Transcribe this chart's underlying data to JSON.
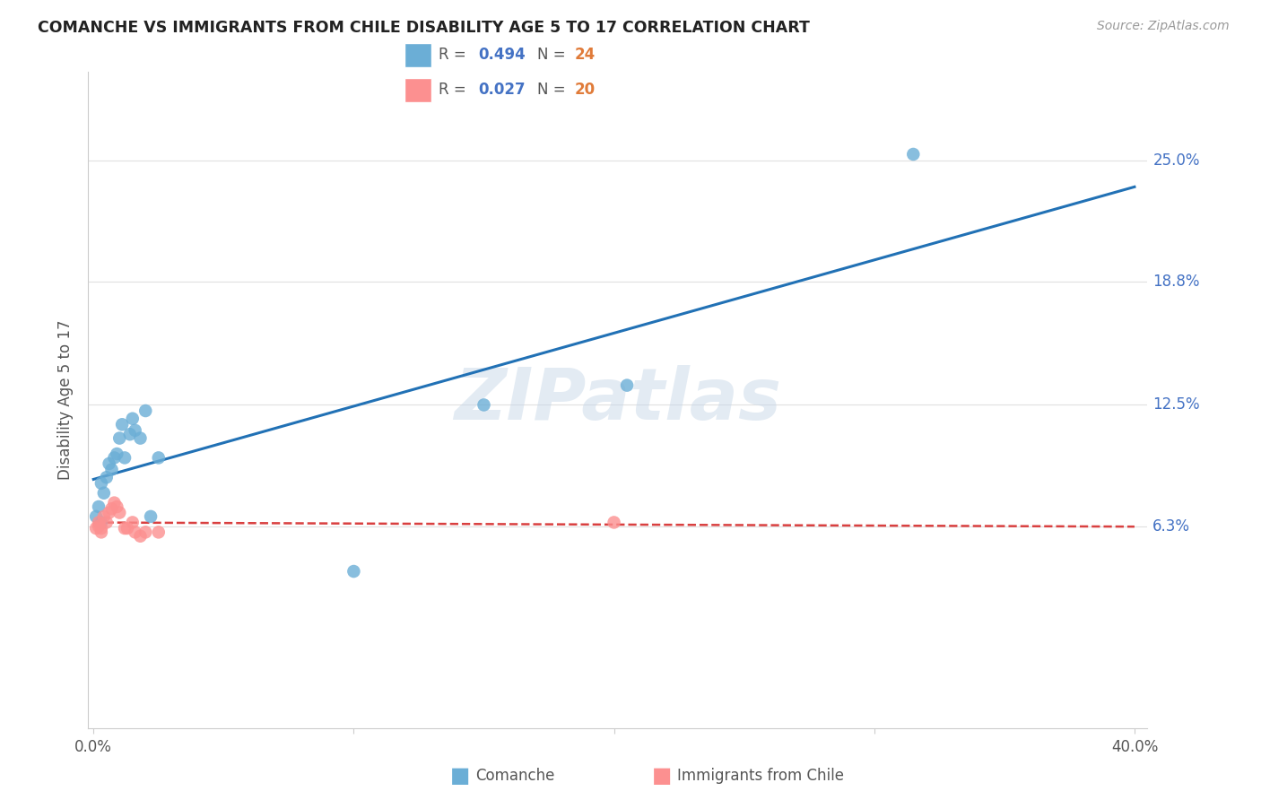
{
  "title": "COMANCHE VS IMMIGRANTS FROM CHILE DISABILITY AGE 5 TO 17 CORRELATION CHART",
  "source": "Source: ZipAtlas.com",
  "ylabel": "Disability Age 5 to 17",
  "ytick_labels": [
    "6.3%",
    "12.5%",
    "18.8%",
    "25.0%"
  ],
  "ytick_values": [
    0.063,
    0.125,
    0.188,
    0.25
  ],
  "xlim": [
    -0.002,
    0.405
  ],
  "ylim": [
    -0.04,
    0.295
  ],
  "watermark": "ZIPatlas",
  "R1": "0.494",
  "N1": "24",
  "R2": "0.027",
  "N2": "20",
  "series1_name": "Comanche",
  "series2_name": "Immigrants from Chile",
  "series1_color": "#6baed6",
  "series2_color": "#fc9090",
  "line1_color": "#2171b5",
  "line2_color": "#d94040",
  "grid_color": "#e0e0e0",
  "bg_color": "#ffffff",
  "title_color": "#222222",
  "source_color": "#999999",
  "rtick_color": "#4472c4",
  "N_color": "#e07b39",
  "comanche_x": [
    0.001,
    0.002,
    0.003,
    0.003,
    0.004,
    0.005,
    0.006,
    0.007,
    0.008,
    0.009,
    0.01,
    0.011,
    0.012,
    0.014,
    0.015,
    0.016,
    0.018,
    0.02,
    0.022,
    0.025,
    0.1,
    0.15,
    0.205,
    0.315
  ],
  "comanche_y": [
    0.068,
    0.073,
    0.065,
    0.085,
    0.08,
    0.088,
    0.095,
    0.092,
    0.098,
    0.1,
    0.108,
    0.115,
    0.098,
    0.11,
    0.118,
    0.112,
    0.108,
    0.122,
    0.068,
    0.098,
    0.04,
    0.125,
    0.135,
    0.253
  ],
  "chile_x": [
    0.001,
    0.002,
    0.002,
    0.003,
    0.003,
    0.004,
    0.005,
    0.006,
    0.007,
    0.008,
    0.009,
    0.01,
    0.012,
    0.013,
    0.015,
    0.016,
    0.018,
    0.02,
    0.025,
    0.2
  ],
  "chile_y": [
    0.062,
    0.063,
    0.065,
    0.06,
    0.062,
    0.068,
    0.065,
    0.07,
    0.072,
    0.075,
    0.073,
    0.07,
    0.062,
    0.062,
    0.065,
    0.06,
    0.058,
    0.06,
    0.06,
    0.065
  ]
}
